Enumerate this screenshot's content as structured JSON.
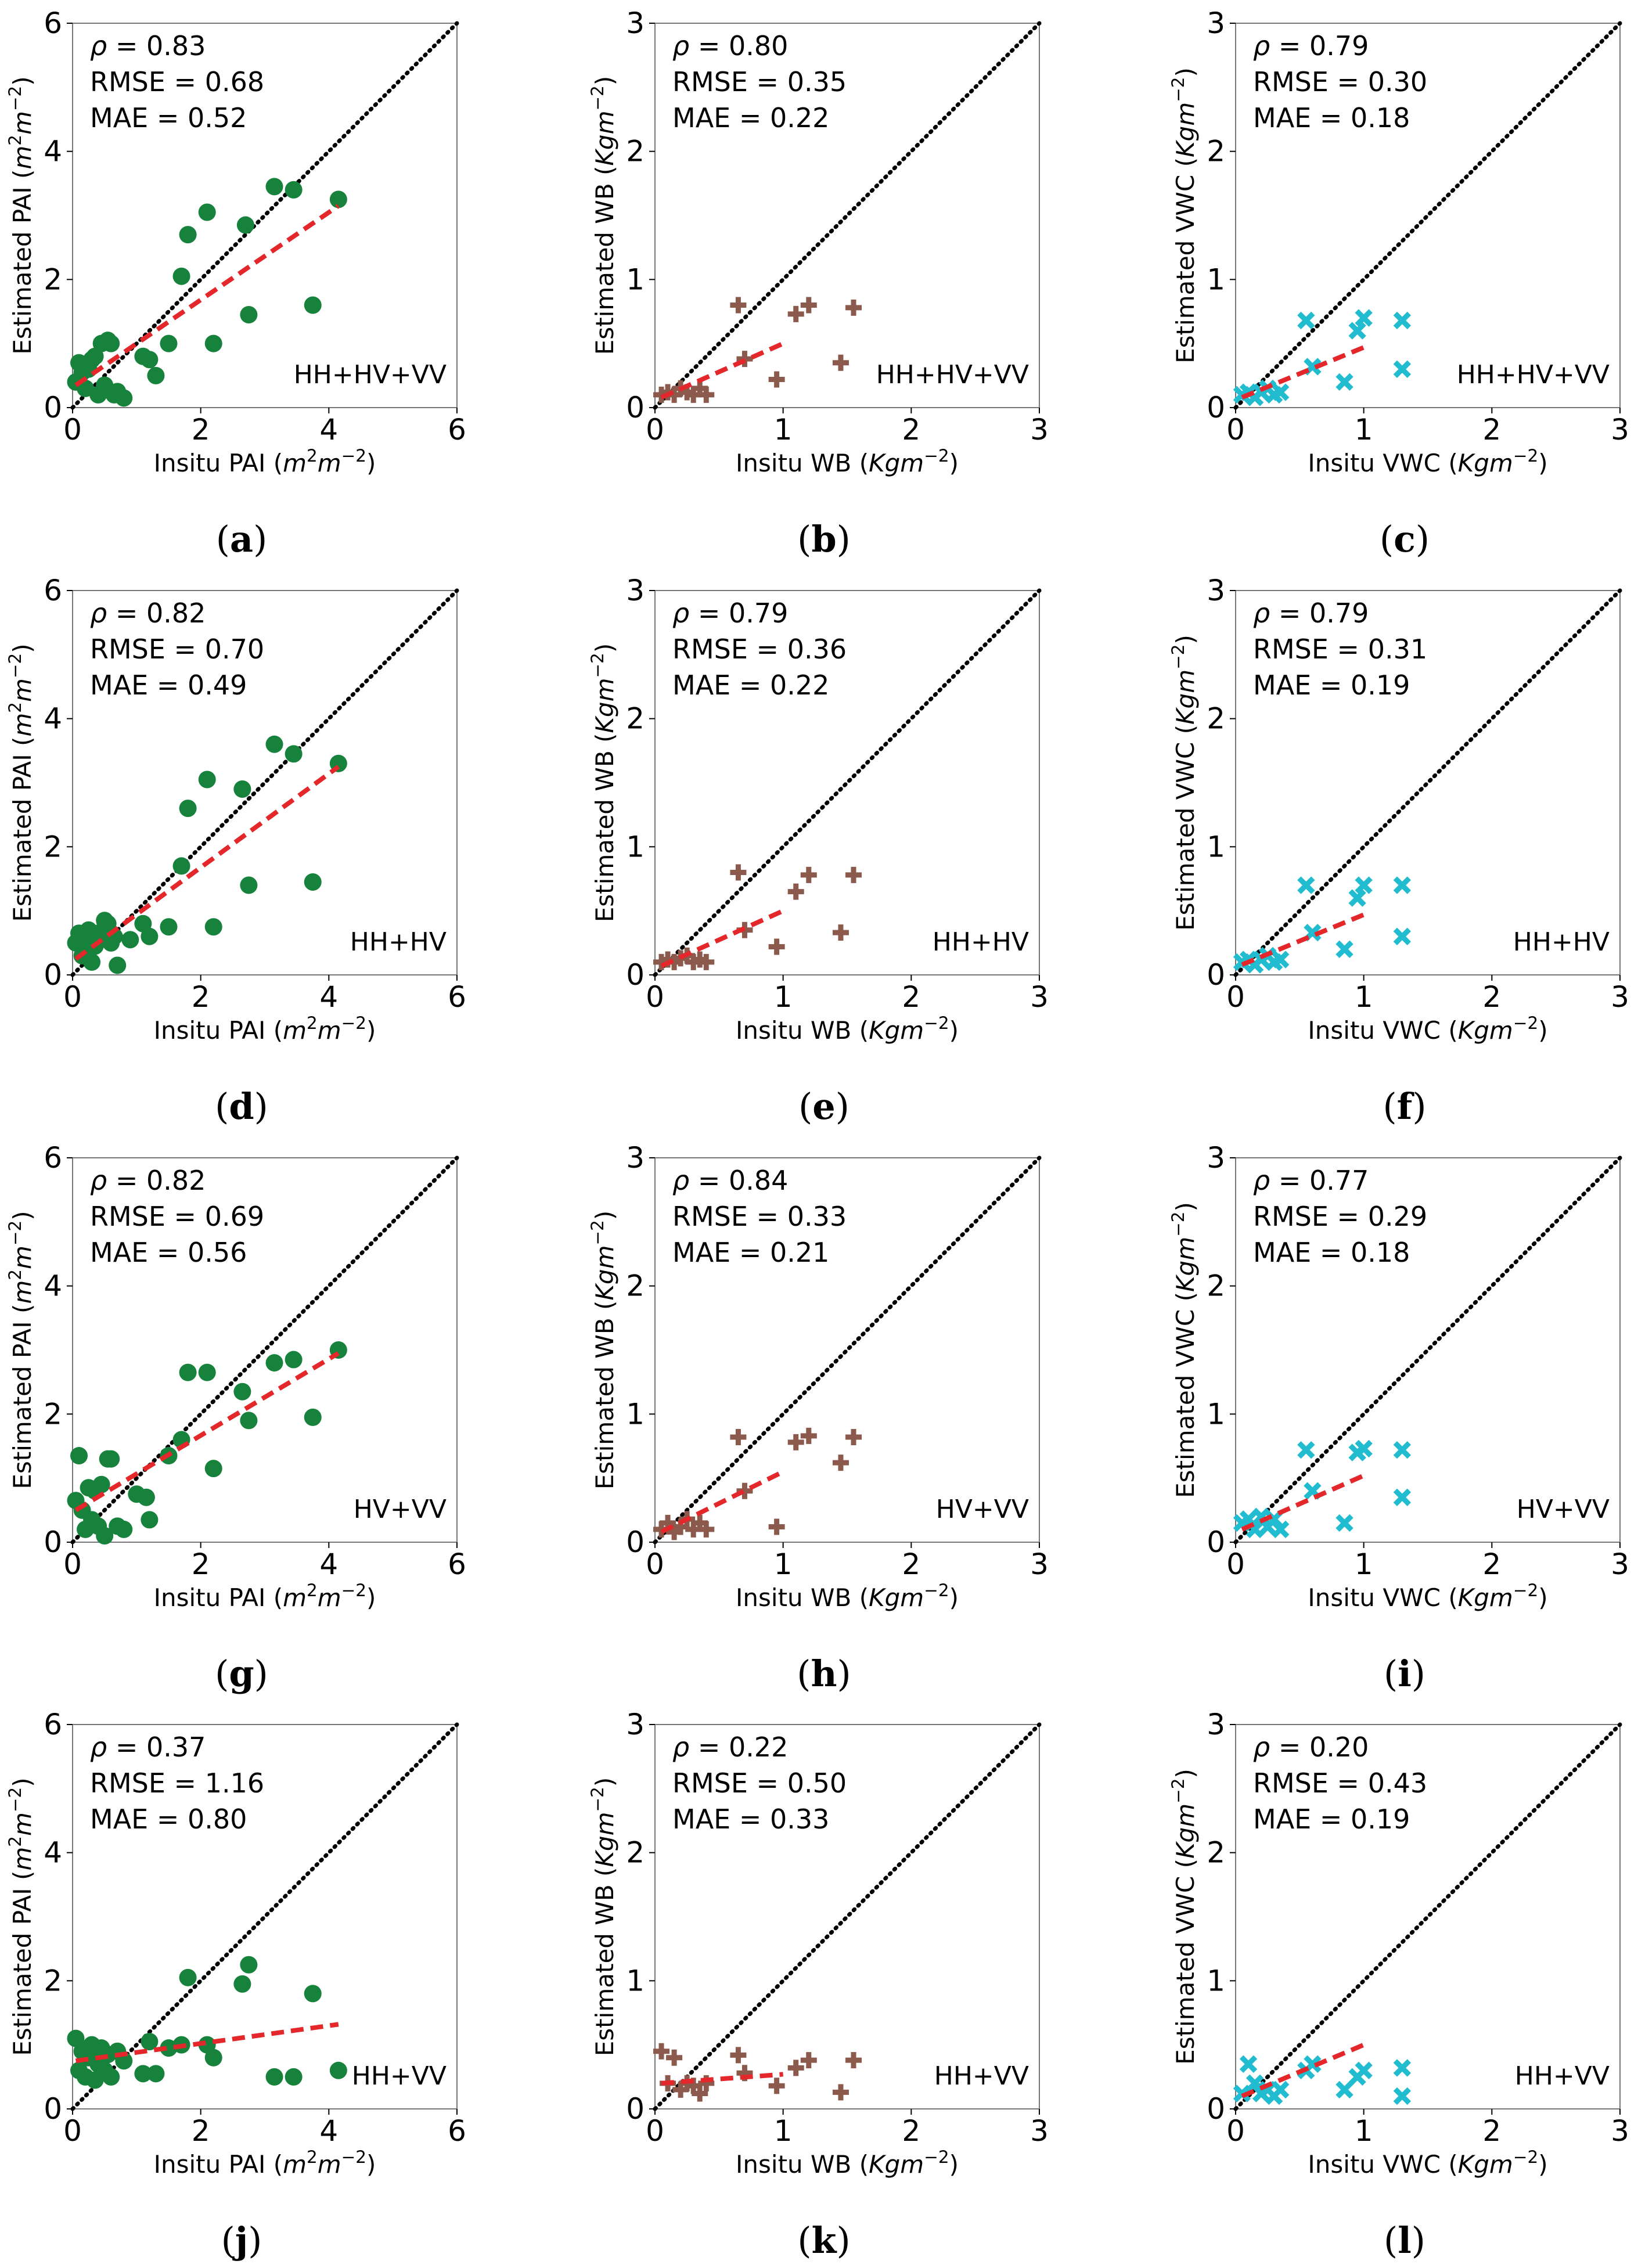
{
  "figure": {
    "combo_labels": [
      "HH+HV+VV",
      "HH+HV",
      "HV+VV",
      "HH+VV"
    ],
    "captions": [
      [
        "(a)",
        "(b)",
        "(c)"
      ],
      [
        "(d)",
        "(e)",
        "(f)"
      ],
      [
        "(g)",
        "(h)",
        "(i)"
      ],
      [
        "(j)",
        "(k)",
        "(l)"
      ]
    ],
    "colors": {
      "PAI": "#17823c",
      "WB": "#8c5a4c",
      "VWC": "#22bcd0",
      "fit": "#e3272a",
      "identity": "#000000",
      "frame": "#000000"
    },
    "marker_icons": {
      "PAI": "filled-circle-icon",
      "WB": "plus-icon",
      "VWC": "x-icon"
    },
    "variables": {
      "PAI": {
        "xlabel": "Insitu PAI (m²m⁻²)",
        "ylabel": "Estimated PAI (m²m⁻²)",
        "xlim": [
          0,
          6
        ],
        "ylim": [
          0,
          6
        ],
        "xticks": [
          "0",
          "2",
          "4",
          "6"
        ],
        "yticks": [
          "0",
          "2",
          "4",
          "6"
        ],
        "tickvals": [
          0,
          2,
          4,
          6
        ]
      },
      "WB": {
        "xlabel": "Insitu WB (Kgm⁻²)",
        "ylabel": "Estimated WB (Kgm⁻²)",
        "xlim": [
          0,
          3
        ],
        "ylim": [
          0,
          3
        ],
        "xticks": [
          "0",
          "1",
          "2",
          "3"
        ],
        "yticks": [
          "0",
          "1",
          "2",
          "3"
        ],
        "tickvals": [
          0,
          1,
          2,
          3
        ]
      },
      "VWC": {
        "xlabel": "Insitu VWC (Kgm⁻²)",
        "ylabel": "Estimated VWC (Kgm⁻²)",
        "xlim": [
          0,
          3
        ],
        "ylim": [
          0,
          3
        ],
        "xticks": [
          "0",
          "1",
          "2",
          "3"
        ],
        "yticks": [
          "0",
          "1",
          "2",
          "3"
        ],
        "tickvals": [
          0,
          1,
          2,
          3
        ]
      }
    }
  },
  "chart_data": [
    {
      "type": "scatter",
      "panel": "(a)",
      "variable": "PAI",
      "combo": "HH+HV+VV",
      "stats": {
        "rho": "ρ = 0.83",
        "rmse": "RMSE = 0.68",
        "mae": "MAE = 0.52"
      },
      "points": [
        [
          0.05,
          0.4
        ],
        [
          0.1,
          0.7
        ],
        [
          0.15,
          0.55
        ],
        [
          0.2,
          0.3
        ],
        [
          0.25,
          0.6
        ],
        [
          0.3,
          0.75
        ],
        [
          0.35,
          0.8
        ],
        [
          0.4,
          0.2
        ],
        [
          0.45,
          1.0
        ],
        [
          0.5,
          0.35
        ],
        [
          0.55,
          1.05
        ],
        [
          0.6,
          1.0
        ],
        [
          0.65,
          0.2
        ],
        [
          0.7,
          0.25
        ],
        [
          0.8,
          0.15
        ],
        [
          1.1,
          0.8
        ],
        [
          1.2,
          0.75
        ],
        [
          1.3,
          0.5
        ],
        [
          1.5,
          1.0
        ],
        [
          1.7,
          2.05
        ],
        [
          1.8,
          2.7
        ],
        [
          2.1,
          3.05
        ],
        [
          2.2,
          1.0
        ],
        [
          2.7,
          2.85
        ],
        [
          2.75,
          1.45
        ],
        [
          3.15,
          3.45
        ],
        [
          3.45,
          3.4
        ],
        [
          3.75,
          1.6
        ],
        [
          4.15,
          3.25
        ]
      ],
      "fit": {
        "x": [
          0.05,
          4.15
        ],
        "y": [
          0.35,
          3.15
        ]
      }
    },
    {
      "type": "scatter",
      "panel": "(b)",
      "variable": "WB",
      "combo": "HH+HV+VV",
      "stats": {
        "rho": "ρ = 0.80",
        "rmse": "RMSE = 0.35",
        "mae": "MAE = 0.22"
      },
      "points": [
        [
          0.05,
          0.1
        ],
        [
          0.1,
          0.12
        ],
        [
          0.15,
          0.1
        ],
        [
          0.2,
          0.15
        ],
        [
          0.25,
          0.12
        ],
        [
          0.3,
          0.1
        ],
        [
          0.35,
          0.15
        ],
        [
          0.4,
          0.1
        ],
        [
          0.65,
          0.8
        ],
        [
          0.7,
          0.38
        ],
        [
          0.95,
          0.22
        ],
        [
          1.1,
          0.73
        ],
        [
          1.2,
          0.8
        ],
        [
          1.45,
          0.35
        ],
        [
          1.55,
          0.78
        ]
      ],
      "fit": {
        "x": [
          0.05,
          1.0
        ],
        "y": [
          0.08,
          0.5
        ]
      }
    },
    {
      "type": "scatter",
      "panel": "(c)",
      "variable": "VWC",
      "combo": "HH+HV+VV",
      "stats": {
        "rho": "ρ = 0.79",
        "rmse": "RMSE = 0.30",
        "mae": "MAE = 0.18"
      },
      "points": [
        [
          0.05,
          0.1
        ],
        [
          0.1,
          0.12
        ],
        [
          0.15,
          0.08
        ],
        [
          0.2,
          0.12
        ],
        [
          0.25,
          0.15
        ],
        [
          0.3,
          0.1
        ],
        [
          0.35,
          0.12
        ],
        [
          0.55,
          0.68
        ],
        [
          0.6,
          0.32
        ],
        [
          0.85,
          0.2
        ],
        [
          0.95,
          0.6
        ],
        [
          1.0,
          0.7
        ],
        [
          1.3,
          0.3
        ],
        [
          1.3,
          0.68
        ]
      ],
      "fit": {
        "x": [
          0.05,
          1.0
        ],
        "y": [
          0.08,
          0.47
        ]
      }
    },
    {
      "type": "scatter",
      "panel": "(d)",
      "variable": "PAI",
      "combo": "HH+HV",
      "stats": {
        "rho": "ρ = 0.82",
        "rmse": "RMSE = 0.70",
        "mae": "MAE = 0.49"
      },
      "points": [
        [
          0.05,
          0.5
        ],
        [
          0.1,
          0.65
        ],
        [
          0.15,
          0.3
        ],
        [
          0.2,
          0.55
        ],
        [
          0.25,
          0.7
        ],
        [
          0.3,
          0.2
        ],
        [
          0.35,
          0.45
        ],
        [
          0.4,
          0.65
        ],
        [
          0.5,
          0.85
        ],
        [
          0.55,
          0.8
        ],
        [
          0.6,
          0.5
        ],
        [
          0.65,
          0.6
        ],
        [
          0.7,
          0.15
        ],
        [
          0.9,
          0.55
        ],
        [
          1.1,
          0.8
        ],
        [
          1.2,
          0.6
        ],
        [
          1.5,
          0.75
        ],
        [
          1.7,
          1.7
        ],
        [
          1.8,
          2.6
        ],
        [
          2.1,
          3.05
        ],
        [
          2.2,
          0.75
        ],
        [
          2.65,
          2.9
        ],
        [
          2.75,
          1.4
        ],
        [
          3.15,
          3.6
        ],
        [
          3.45,
          3.45
        ],
        [
          3.75,
          1.45
        ],
        [
          4.15,
          3.3
        ]
      ],
      "fit": {
        "x": [
          0.05,
          4.15
        ],
        "y": [
          0.25,
          3.25
        ]
      }
    },
    {
      "type": "scatter",
      "panel": "(e)",
      "variable": "WB",
      "combo": "HH+HV",
      "stats": {
        "rho": "ρ = 0.79",
        "rmse": "RMSE = 0.36",
        "mae": "MAE = 0.22"
      },
      "points": [
        [
          0.05,
          0.1
        ],
        [
          0.1,
          0.12
        ],
        [
          0.15,
          0.1
        ],
        [
          0.2,
          0.13
        ],
        [
          0.25,
          0.15
        ],
        [
          0.3,
          0.1
        ],
        [
          0.35,
          0.12
        ],
        [
          0.4,
          0.1
        ],
        [
          0.65,
          0.8
        ],
        [
          0.7,
          0.35
        ],
        [
          0.95,
          0.22
        ],
        [
          1.1,
          0.65
        ],
        [
          1.2,
          0.78
        ],
        [
          1.45,
          0.33
        ],
        [
          1.55,
          0.78
        ]
      ],
      "fit": {
        "x": [
          0.05,
          1.0
        ],
        "y": [
          0.07,
          0.5
        ]
      }
    },
    {
      "type": "scatter",
      "panel": "(f)",
      "variable": "VWC",
      "combo": "HH+HV",
      "stats": {
        "rho": "ρ =  0.79",
        "rmse": "RMSE = 0.31",
        "mae": "MAE = 0.19"
      },
      "points": [
        [
          0.05,
          0.1
        ],
        [
          0.1,
          0.12
        ],
        [
          0.15,
          0.08
        ],
        [
          0.2,
          0.12
        ],
        [
          0.25,
          0.15
        ],
        [
          0.3,
          0.1
        ],
        [
          0.35,
          0.12
        ],
        [
          0.55,
          0.7
        ],
        [
          0.6,
          0.33
        ],
        [
          0.85,
          0.2
        ],
        [
          0.95,
          0.6
        ],
        [
          1.0,
          0.7
        ],
        [
          1.3,
          0.3
        ],
        [
          1.3,
          0.7
        ]
      ],
      "fit": {
        "x": [
          0.05,
          1.0
        ],
        "y": [
          0.08,
          0.47
        ]
      }
    },
    {
      "type": "scatter",
      "panel": "(g)",
      "variable": "PAI",
      "combo": "HV+VV",
      "stats": {
        "rho": "ρ = 0.82",
        "rmse": "RMSE = 0.69",
        "mae": "MAE = 0.56"
      },
      "points": [
        [
          0.05,
          0.65
        ],
        [
          0.1,
          1.35
        ],
        [
          0.15,
          0.5
        ],
        [
          0.2,
          0.2
        ],
        [
          0.25,
          0.85
        ],
        [
          0.3,
          0.35
        ],
        [
          0.35,
          0.8
        ],
        [
          0.4,
          0.25
        ],
        [
          0.45,
          0.9
        ],
        [
          0.5,
          0.1
        ],
        [
          0.55,
          1.3
        ],
        [
          0.6,
          1.3
        ],
        [
          0.7,
          0.25
        ],
        [
          0.8,
          0.2
        ],
        [
          1.0,
          0.75
        ],
        [
          1.15,
          0.7
        ],
        [
          1.2,
          0.35
        ],
        [
          1.5,
          1.35
        ],
        [
          1.7,
          1.6
        ],
        [
          1.8,
          2.65
        ],
        [
          2.1,
          2.65
        ],
        [
          2.2,
          1.15
        ],
        [
          2.65,
          2.35
        ],
        [
          2.75,
          1.9
        ],
        [
          3.15,
          2.8
        ],
        [
          3.45,
          2.85
        ],
        [
          3.75,
          1.95
        ],
        [
          4.15,
          3.0
        ]
      ],
      "fit": {
        "x": [
          0.05,
          4.15
        ],
        "y": [
          0.5,
          2.95
        ]
      }
    },
    {
      "type": "scatter",
      "panel": "(h)",
      "variable": "WB",
      "combo": "HV+VV",
      "stats": {
        "rho": "ρ = 0.84",
        "rmse": "RMSE = 0.33",
        "mae": "MAE = 0.21"
      },
      "points": [
        [
          0.05,
          0.1
        ],
        [
          0.1,
          0.15
        ],
        [
          0.15,
          0.08
        ],
        [
          0.2,
          0.12
        ],
        [
          0.25,
          0.18
        ],
        [
          0.3,
          0.1
        ],
        [
          0.35,
          0.15
        ],
        [
          0.4,
          0.1
        ],
        [
          0.65,
          0.82
        ],
        [
          0.7,
          0.4
        ],
        [
          0.95,
          0.12
        ],
        [
          1.1,
          0.78
        ],
        [
          1.2,
          0.83
        ],
        [
          1.45,
          0.62
        ],
        [
          1.55,
          0.82
        ]
      ],
      "fit": {
        "x": [
          0.05,
          1.0
        ],
        "y": [
          0.08,
          0.55
        ]
      }
    },
    {
      "type": "scatter",
      "panel": "(i)",
      "variable": "VWC",
      "combo": "HV+VV",
      "stats": {
        "rho": "ρ = 0.77",
        "rmse": "RMSE = 0.29",
        "mae": "MAE = 0.18"
      },
      "points": [
        [
          0.05,
          0.15
        ],
        [
          0.1,
          0.18
        ],
        [
          0.15,
          0.1
        ],
        [
          0.2,
          0.2
        ],
        [
          0.25,
          0.12
        ],
        [
          0.3,
          0.18
        ],
        [
          0.35,
          0.1
        ],
        [
          0.55,
          0.72
        ],
        [
          0.6,
          0.4
        ],
        [
          0.85,
          0.15
        ],
        [
          0.95,
          0.7
        ],
        [
          1.0,
          0.73
        ],
        [
          1.3,
          0.35
        ],
        [
          1.3,
          0.72
        ]
      ],
      "fit": {
        "x": [
          0.05,
          1.0
        ],
        "y": [
          0.1,
          0.52
        ]
      }
    },
    {
      "type": "scatter",
      "panel": "(j)",
      "variable": "PAI",
      "combo": "HH+VV",
      "stats": {
        "rho": "ρ = 0.37",
        "rmse": "RMSE = 1.16",
        "mae": "MAE = 0.80"
      },
      "points": [
        [
          0.05,
          1.1
        ],
        [
          0.1,
          0.6
        ],
        [
          0.15,
          0.9
        ],
        [
          0.2,
          0.5
        ],
        [
          0.25,
          0.8
        ],
        [
          0.3,
          1.0
        ],
        [
          0.35,
          0.45
        ],
        [
          0.4,
          0.7
        ],
        [
          0.45,
          0.95
        ],
        [
          0.5,
          0.6
        ],
        [
          0.55,
          0.85
        ],
        [
          0.6,
          0.5
        ],
        [
          0.7,
          0.9
        ],
        [
          0.8,
          0.75
        ],
        [
          1.1,
          0.55
        ],
        [
          1.2,
          1.05
        ],
        [
          1.3,
          0.55
        ],
        [
          1.5,
          0.95
        ],
        [
          1.7,
          1.0
        ],
        [
          1.8,
          2.05
        ],
        [
          2.1,
          1.0
        ],
        [
          2.2,
          0.8
        ],
        [
          2.65,
          1.95
        ],
        [
          2.75,
          2.25
        ],
        [
          3.15,
          0.5
        ],
        [
          3.45,
          0.5
        ],
        [
          3.75,
          1.8
        ],
        [
          4.15,
          0.6
        ]
      ],
      "fit": {
        "x": [
          0.05,
          4.15
        ],
        "y": [
          0.75,
          1.32
        ]
      }
    },
    {
      "type": "scatter",
      "panel": "(k)",
      "variable": "WB",
      "combo": "HH+VV",
      "stats": {
        "rho": "ρ = 0.22",
        "rmse": "RMSE = 0.50",
        "mae": "MAE = 0.33"
      },
      "points": [
        [
          0.05,
          0.45
        ],
        [
          0.1,
          0.2
        ],
        [
          0.15,
          0.4
        ],
        [
          0.2,
          0.15
        ],
        [
          0.25,
          0.2
        ],
        [
          0.3,
          0.18
        ],
        [
          0.35,
          0.12
        ],
        [
          0.4,
          0.2
        ],
        [
          0.65,
          0.42
        ],
        [
          0.7,
          0.28
        ],
        [
          0.95,
          0.18
        ],
        [
          1.1,
          0.32
        ],
        [
          1.2,
          0.38
        ],
        [
          1.45,
          0.13
        ],
        [
          1.55,
          0.38
        ]
      ],
      "fit": {
        "x": [
          0.05,
          1.0
        ],
        "y": [
          0.2,
          0.27
        ]
      }
    },
    {
      "type": "scatter",
      "panel": "(l)",
      "variable": "VWC",
      "combo": "HH+VV",
      "stats": {
        "rho": "ρ = 0.20",
        "rmse": "RMSE = 0.43",
        "mae": "MAE = 0.19"
      },
      "points": [
        [
          0.05,
          0.12
        ],
        [
          0.1,
          0.35
        ],
        [
          0.15,
          0.2
        ],
        [
          0.2,
          0.12
        ],
        [
          0.25,
          0.15
        ],
        [
          0.3,
          0.1
        ],
        [
          0.35,
          0.15
        ],
        [
          0.55,
          0.3
        ],
        [
          0.6,
          0.35
        ],
        [
          0.85,
          0.15
        ],
        [
          0.95,
          0.25
        ],
        [
          1.0,
          0.3
        ],
        [
          1.3,
          0.1
        ],
        [
          1.3,
          0.32
        ]
      ],
      "fit": {
        "x": [
          0.05,
          1.0
        ],
        "y": [
          0.1,
          0.5
        ]
      }
    }
  ]
}
